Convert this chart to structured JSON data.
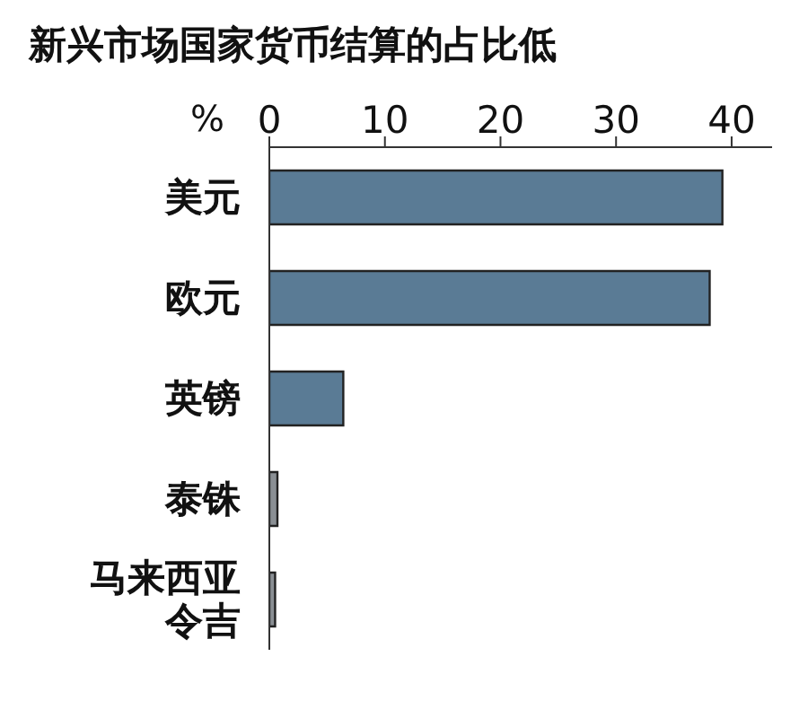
{
  "chart_data": {
    "type": "bar",
    "orientation": "horizontal",
    "title": "新兴市场国家货币结算的占比低",
    "xlabel": "%",
    "categories": [
      "美元",
      "欧元",
      "英镑",
      "泰铢",
      "马来西亚令吉"
    ],
    "values": [
      39.2,
      38.1,
      6.4,
      0.7,
      0.5
    ],
    "colors": [
      "#5a7b95",
      "#5a7b95",
      "#5a7b95",
      "#8a8f94",
      "#8a8f94"
    ],
    "xlim": [
      0,
      43.5
    ],
    "xticks": [
      0,
      10,
      20,
      30,
      40
    ],
    "grid": false
  }
}
